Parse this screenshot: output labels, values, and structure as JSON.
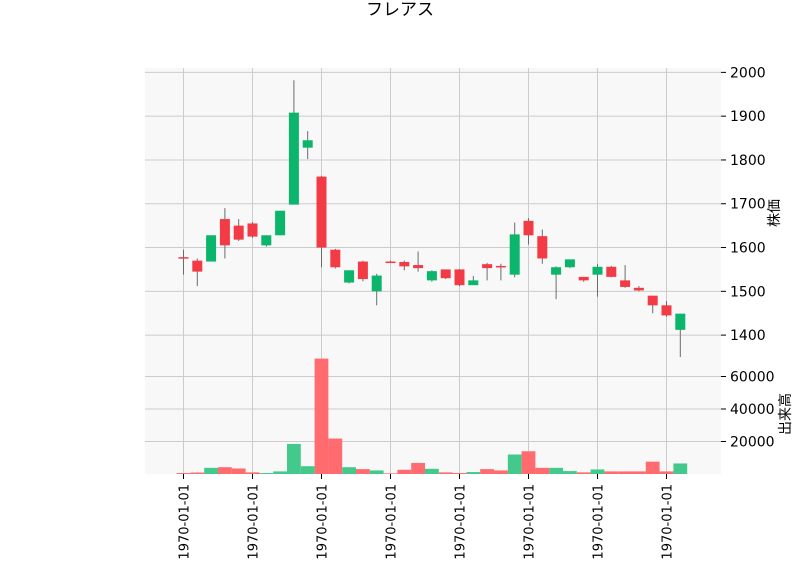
{
  "chart_data": {
    "type": "candlestick",
    "title": "フレアス",
    "ylabel_price": "株価",
    "ylabel_volume": "出来高",
    "grid": true,
    "price_ylim": [
      1350,
      2010
    ],
    "volume_ylim": [
      0,
      72000
    ],
    "price_ticks": [
      1400,
      1500,
      1600,
      1700,
      1800,
      1900,
      2000
    ],
    "volume_ticks": [
      20000,
      40000,
      60000
    ],
    "volume_tick_labels": [
      "20000",
      "40000",
      "60000"
    ],
    "x_tick_label": "1970-01-01",
    "x_tick_count": 8,
    "colors": {
      "up": "#0bb56b",
      "down": "#f23b45",
      "up_volume": "#44c98d",
      "down_volume": "#ff6b6f",
      "wick": "#6b6b6b",
      "panel_bg": "#f8f8f8",
      "grid": "#cccccc"
    },
    "candles": [
      {
        "open": 1578,
        "high": 1595,
        "low": 1538,
        "close": 1575,
        "volume": 600
      },
      {
        "open": 1570,
        "high": 1575,
        "low": 1512,
        "close": 1545,
        "volume": 900
      },
      {
        "open": 1568,
        "high": 1628,
        "low": 1568,
        "close": 1628,
        "volume": 3800
      },
      {
        "open": 1665,
        "high": 1690,
        "low": 1575,
        "close": 1605,
        "volume": 4200
      },
      {
        "open": 1650,
        "high": 1665,
        "low": 1615,
        "close": 1618,
        "volume": 3400
      },
      {
        "open": 1655,
        "high": 1658,
        "low": 1622,
        "close": 1625,
        "volume": 1000
      },
      {
        "open": 1605,
        "high": 1628,
        "low": 1602,
        "close": 1628,
        "volume": 600
      },
      {
        "open": 1628,
        "high": 1684,
        "low": 1628,
        "close": 1684,
        "volume": 1600
      },
      {
        "open": 1698,
        "high": 1982,
        "low": 1698,
        "close": 1908,
        "volume": 18500
      },
      {
        "open": 1828,
        "high": 1866,
        "low": 1802,
        "close": 1845,
        "volume": 4800
      },
      {
        "open": 1762,
        "high": 1764,
        "low": 1555,
        "close": 1600,
        "volume": 71000
      },
      {
        "open": 1595,
        "high": 1597,
        "low": 1552,
        "close": 1555,
        "volume": 21800
      },
      {
        "open": 1520,
        "high": 1548,
        "low": 1518,
        "close": 1548,
        "volume": 4200
      },
      {
        "open": 1568,
        "high": 1570,
        "low": 1523,
        "close": 1528,
        "volume": 3000
      },
      {
        "open": 1500,
        "high": 1540,
        "low": 1468,
        "close": 1536,
        "volume": 2200
      },
      {
        "open": 1568,
        "high": 1570,
        "low": 1566,
        "close": 1567,
        "volume": 400
      },
      {
        "open": 1567,
        "high": 1570,
        "low": 1548,
        "close": 1557,
        "volume": 2600
      },
      {
        "open": 1560,
        "high": 1591,
        "low": 1545,
        "close": 1553,
        "volume": 6800
      },
      {
        "open": 1525,
        "high": 1548,
        "low": 1522,
        "close": 1546,
        "volume": 3200
      },
      {
        "open": 1550,
        "high": 1550,
        "low": 1528,
        "close": 1530,
        "volume": 1000
      },
      {
        "open": 1550,
        "high": 1551,
        "low": 1512,
        "close": 1514,
        "volume": 600
      },
      {
        "open": 1514,
        "high": 1535,
        "low": 1514,
        "close": 1525,
        "volume": 1200
      },
      {
        "open": 1562,
        "high": 1565,
        "low": 1525,
        "close": 1553,
        "volume": 3000
      },
      {
        "open": 1558,
        "high": 1563,
        "low": 1525,
        "close": 1555,
        "volume": 2200
      },
      {
        "open": 1538,
        "high": 1657,
        "low": 1532,
        "close": 1630,
        "volume": 12000
      },
      {
        "open": 1661,
        "high": 1667,
        "low": 1607,
        "close": 1628,
        "volume": 14000
      },
      {
        "open": 1626,
        "high": 1641,
        "low": 1563,
        "close": 1575,
        "volume": 3800
      },
      {
        "open": 1538,
        "high": 1557,
        "low": 1482,
        "close": 1555,
        "volume": 3800
      },
      {
        "open": 1555,
        "high": 1573,
        "low": 1553,
        "close": 1573,
        "volume": 1800
      },
      {
        "open": 1533,
        "high": 1533,
        "low": 1522,
        "close": 1525,
        "volume": 1000
      },
      {
        "open": 1538,
        "high": 1562,
        "low": 1488,
        "close": 1556,
        "volume": 2800
      },
      {
        "open": 1556,
        "high": 1558,
        "low": 1532,
        "close": 1533,
        "volume": 1600
      },
      {
        "open": 1525,
        "high": 1560,
        "low": 1508,
        "close": 1510,
        "volume": 1600
      },
      {
        "open": 1508,
        "high": 1512,
        "low": 1500,
        "close": 1502,
        "volume": 1600
      },
      {
        "open": 1490,
        "high": 1490,
        "low": 1450,
        "close": 1468,
        "volume": 7600
      },
      {
        "open": 1468,
        "high": 1478,
        "low": 1442,
        "close": 1445,
        "volume": 1600
      },
      {
        "open": 1412,
        "high": 1449,
        "low": 1336,
        "close": 1449,
        "volume": 6500
      }
    ]
  }
}
